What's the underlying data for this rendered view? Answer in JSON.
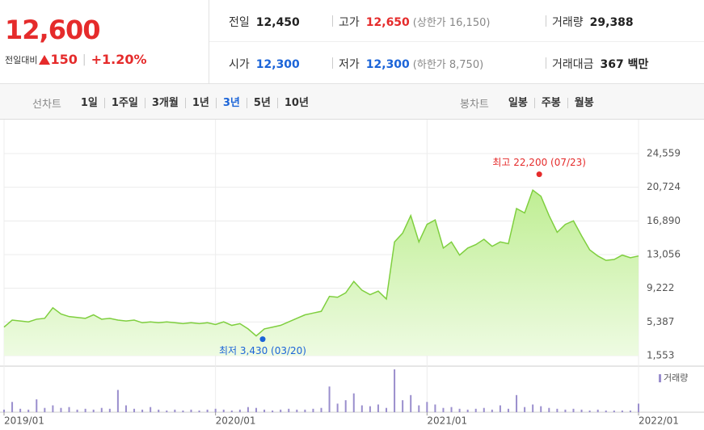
{
  "header": {
    "price": "12,600",
    "change_label": "전일대비",
    "change": "150",
    "change_rate": "+1.20%"
  },
  "quote": [
    [
      {
        "label": "전일",
        "value": "12,450"
      },
      {
        "label": "고가",
        "value": "12,650",
        "color": "#e52b2b",
        "sub": "(상한가 16,150)"
      },
      {
        "label": "거래량",
        "value": "29,388"
      }
    ],
    [
      {
        "label": "시가",
        "value": "12,300",
        "color": "#1b64d8"
      },
      {
        "label": "저가",
        "value": "12,300",
        "color": "#1b64d8",
        "sub": "(하한가 8,750)"
      },
      {
        "label": "거래대금",
        "value": "367 백만"
      }
    ]
  ],
  "tabs": {
    "line_label": "선차트",
    "line_periods": [
      "1일",
      "1주일",
      "3개월",
      "1년",
      "3년",
      "5년",
      "10년"
    ],
    "selected_period": 4,
    "candle_label": "봉차트",
    "candle_periods": [
      "일봉",
      "주봉",
      "월봉"
    ]
  },
  "chart_data": {
    "type": "line",
    "color": "#7fcf3f",
    "fill": "#c6efa0",
    "categories": [
      "2019/01",
      null,
      null,
      null,
      null,
      null,
      null,
      null,
      null,
      null,
      null,
      null,
      null,
      null,
      null,
      null,
      null,
      null,
      null,
      null,
      null,
      null,
      null,
      null,
      null,
      null,
      "2020/01",
      null,
      null,
      null,
      null,
      null,
      null,
      null,
      null,
      null,
      null,
      null,
      null,
      null,
      null,
      null,
      null,
      null,
      null,
      null,
      null,
      null,
      null,
      null,
      null,
      null,
      "2021/01",
      null,
      null,
      null,
      null,
      null,
      null,
      null,
      null,
      null,
      null,
      null,
      null,
      null,
      null,
      null,
      null,
      null,
      null,
      null,
      null,
      null,
      null,
      null,
      null,
      null,
      "2022/01"
    ],
    "values": [
      4800,
      5600,
      5500,
      5400,
      5700,
      5800,
      7000,
      6300,
      6000,
      5900,
      5800,
      6200,
      5700,
      5800,
      5600,
      5500,
      5600,
      5300,
      5400,
      5300,
      5400,
      5300,
      5200,
      5300,
      5200,
      5300,
      5100,
      5400,
      5000,
      5200,
      4600,
      3800,
      4600,
      4800,
      5000,
      5400,
      5800,
      6200,
      6400,
      6600,
      8300,
      8200,
      8700,
      10000,
      9000,
      8500,
      8900,
      8000,
      14500,
      15500,
      17500,
      14500,
      16500,
      17000,
      13800,
      14500,
      13000,
      13800,
      14200,
      14800,
      14000,
      14500,
      14300,
      18300,
      17800,
      20400,
      19700,
      17500,
      15600,
      16500,
      16900,
      15200,
      13600,
      12900,
      12400,
      12500,
      13000,
      12700,
      12900
    ],
    "ylim": [
      1553,
      24559
    ],
    "yticks": [
      {
        "value": 1553,
        "label": "1,553"
      },
      {
        "value": 5387,
        "label": "5,387"
      },
      {
        "value": 9222,
        "label": "9,222"
      },
      {
        "value": 13056,
        "label": "13,056"
      },
      {
        "value": 16890,
        "label": "16,890"
      },
      {
        "value": 20724,
        "label": "20,724"
      },
      {
        "value": 24559,
        "label": "24,559"
      }
    ],
    "grid": true,
    "annotations": [
      {
        "label": "최고 22,200 (07/23)",
        "value": 22200,
        "color": "#e52b2b"
      },
      {
        "label": "최저 3,430 (03/20)",
        "value": 3430,
        "color": "#1b64d8"
      }
    ],
    "volume": {
      "name": "거래량",
      "color": "#9a8ecd",
      "values": [
        3,
        12,
        4,
        3,
        15,
        5,
        8,
        5,
        6,
        3,
        4,
        3,
        5,
        4,
        26,
        8,
        4,
        3,
        6,
        3,
        2,
        3,
        2,
        3,
        2,
        3,
        4,
        3,
        2,
        3,
        6,
        5,
        3,
        2,
        3,
        4,
        3,
        3,
        4,
        5,
        30,
        10,
        14,
        22,
        8,
        7,
        9,
        5,
        50,
        14,
        20,
        8,
        12,
        9,
        5,
        6,
        4,
        3,
        4,
        5,
        3,
        8,
        4,
        20,
        6,
        9,
        7,
        5,
        4,
        3,
        4,
        3,
        2,
        3,
        2,
        2,
        2,
        2,
        10
      ]
    }
  }
}
